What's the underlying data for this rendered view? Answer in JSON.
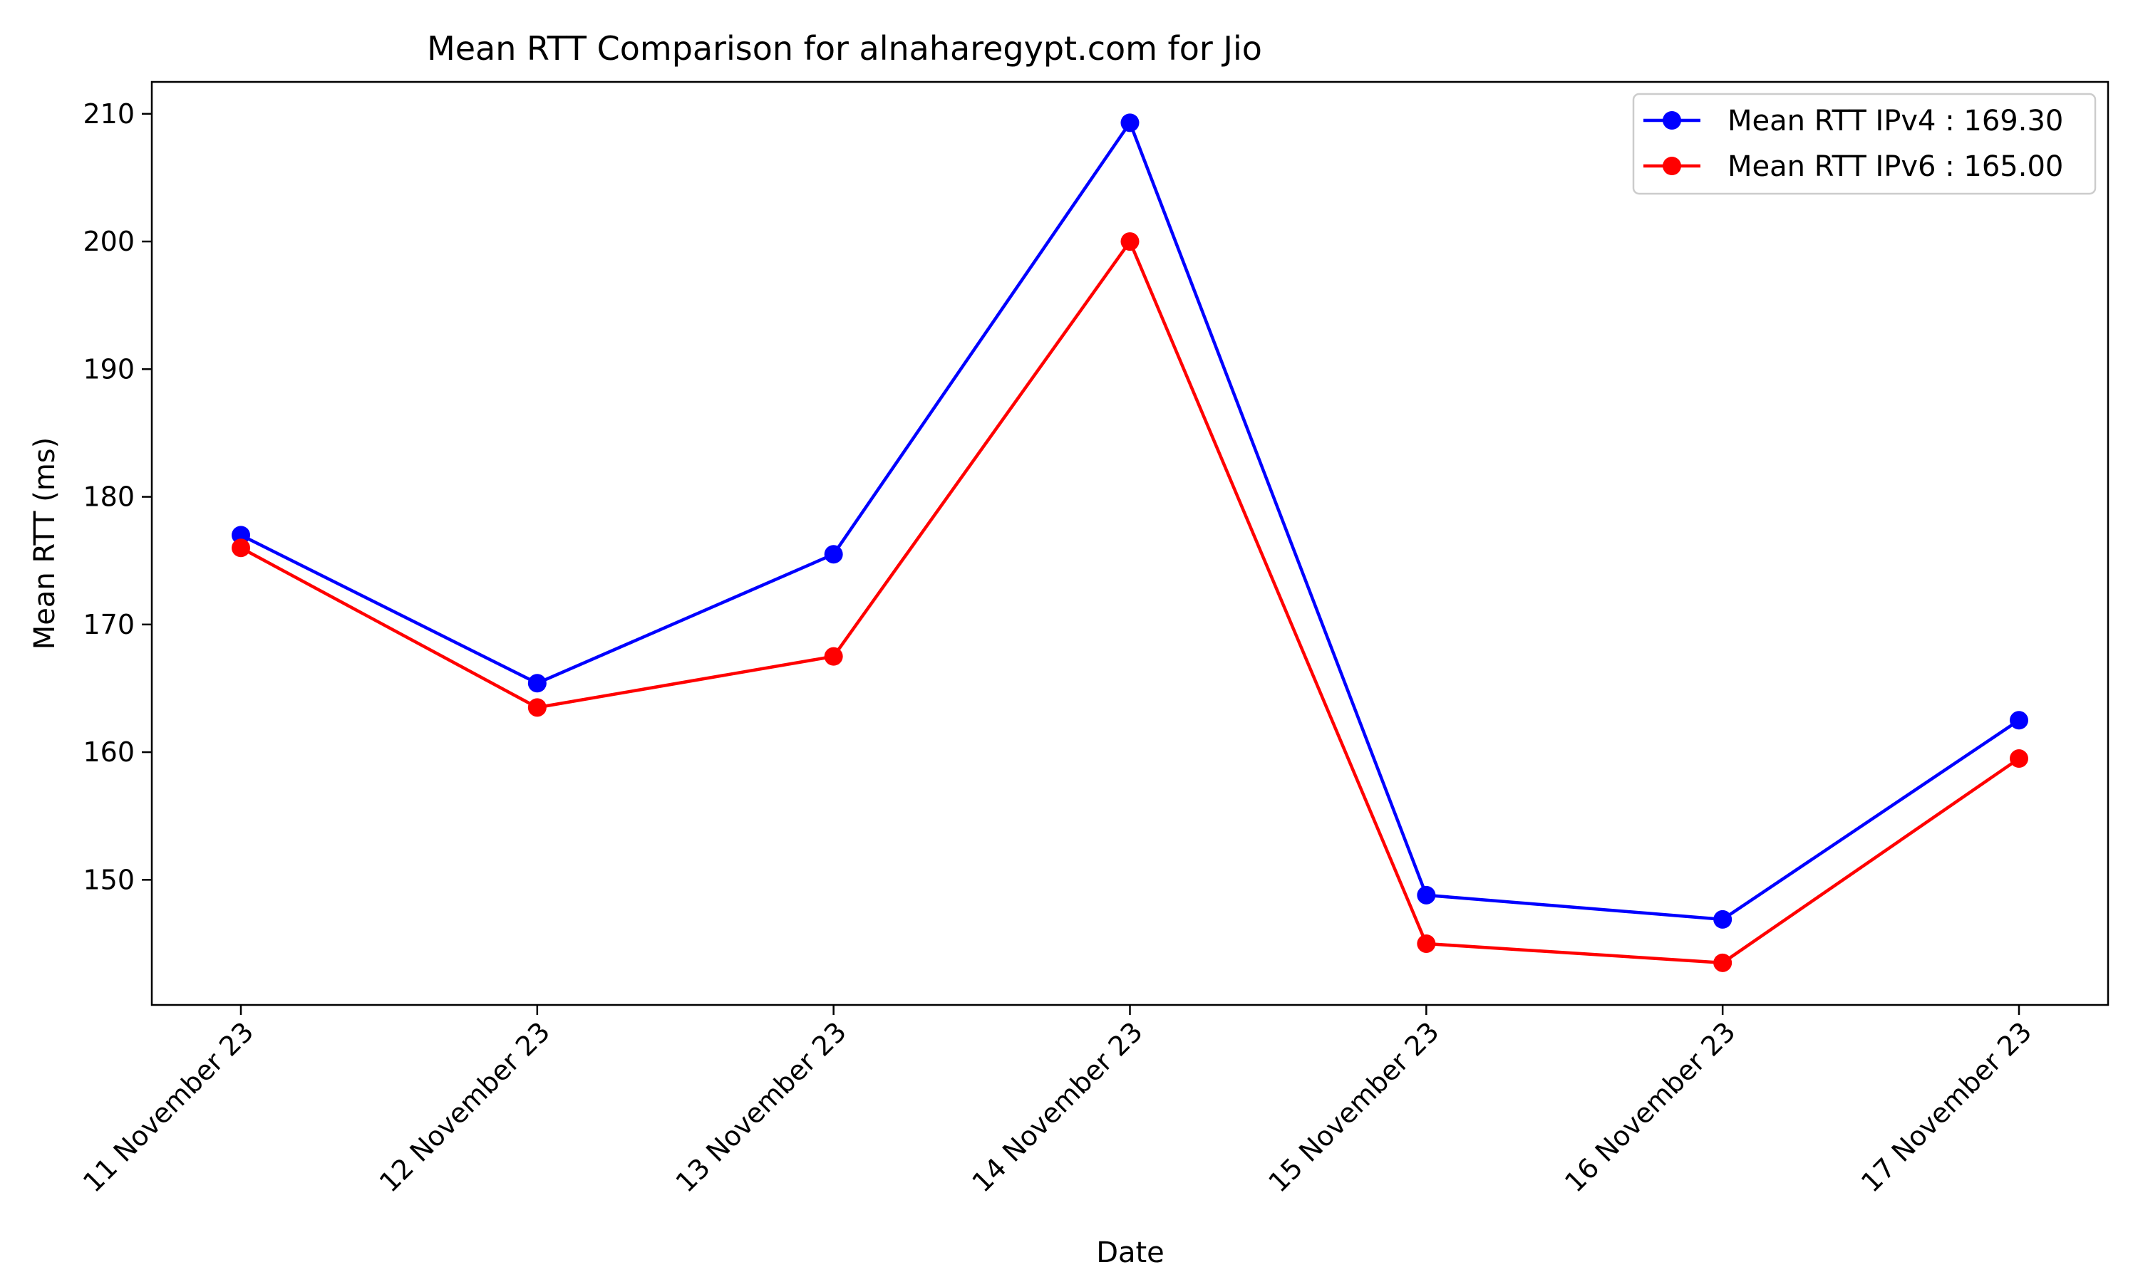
{
  "chart_data": {
    "type": "line",
    "title": "Mean RTT Comparison for alnaharegypt.com for Jio",
    "xlabel": "Date",
    "ylabel": "Mean RTT (ms)",
    "categories": [
      "11 November 23",
      "12 November 23",
      "13 November 23",
      "14 November 23",
      "15 November 23",
      "16 November 23",
      "17 November 23"
    ],
    "yticks": [
      150,
      160,
      170,
      180,
      190,
      200,
      210
    ],
    "ylim": [
      140.2,
      212.5
    ],
    "grid": false,
    "legend_position": "upper right",
    "series": [
      {
        "name": "Mean RTT IPv4 : 169.30",
        "color": "#0000ff",
        "marker": "circle",
        "values": [
          177.0,
          165.4,
          175.5,
          209.3,
          148.8,
          146.9,
          162.5
        ]
      },
      {
        "name": "Mean RTT IPv6 : 165.00",
        "color": "#ff0000",
        "marker": "circle",
        "values": [
          176.0,
          163.5,
          167.5,
          200.0,
          145.0,
          143.5,
          159.5
        ]
      }
    ]
  }
}
